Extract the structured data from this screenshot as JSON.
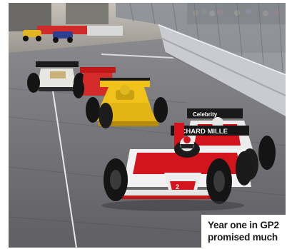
{
  "caption": {
    "line1": "Year one in GP2",
    "line2": "promised much"
  },
  "photo": {
    "subject": "racing-cars-on-street-circuit",
    "car_sponsor_texts": [
      "RICHARD MILLE",
      "Celebrity"
    ],
    "colors": {
      "track": "#6e6e72",
      "barrier": "#c9cbd0",
      "fence": "#8d9097",
      "lead_car_red": "#d4141c",
      "lead_car_white": "#f2f2f2",
      "yellow_car": "#f0c21a",
      "caption_bg": "#ffffff",
      "caption_text": "#1a1a1a"
    }
  }
}
